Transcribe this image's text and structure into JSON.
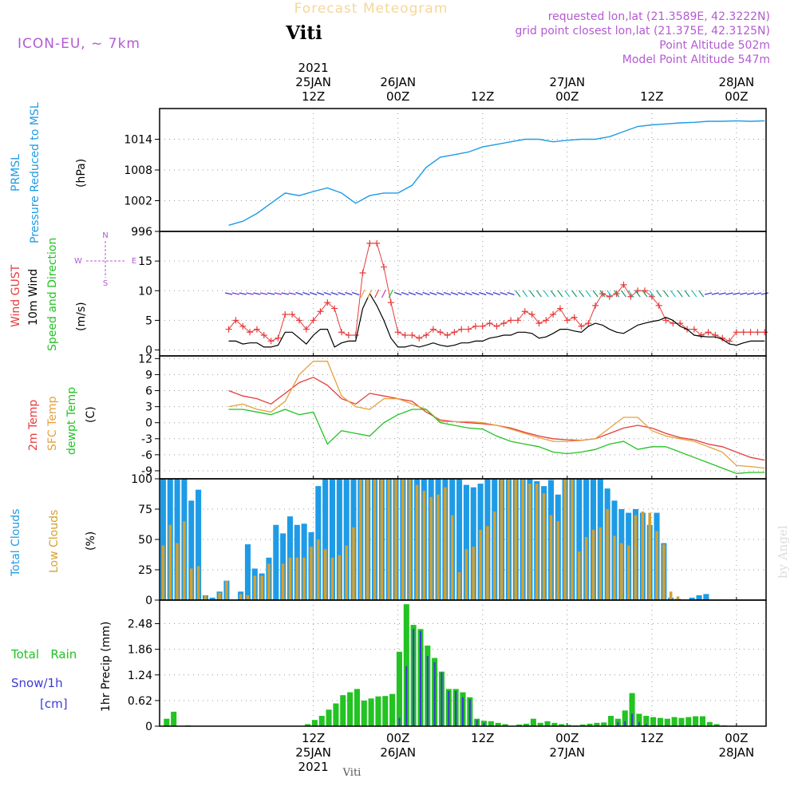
{
  "header": {
    "product": "Forecast Meteogram",
    "location": "Viti",
    "model": "ICON-EU, ~ 7km",
    "requested": "requested lon,lat (21.3589E, 42.3222N)",
    "gridpoint": "grid point closest lon,lat (21.375E, 42.3125N)",
    "point_alt": "Point Altitude 502m",
    "model_alt": "Model Point Altitude 547m",
    "credit": "by Angel",
    "footer": "Viti"
  },
  "time_axis": {
    "top_labels": [
      {
        "h": 12,
        "lines": [
          "2021",
          "25JAN",
          "12Z"
        ]
      },
      {
        "h": 24,
        "lines": [
          "26JAN",
          "00Z"
        ]
      },
      {
        "h": 36,
        "lines": [
          "12Z"
        ]
      },
      {
        "h": 48,
        "lines": [
          "27JAN",
          "00Z"
        ]
      },
      {
        "h": 60,
        "lines": [
          "12Z"
        ]
      },
      {
        "h": 72,
        "lines": [
          "28JAN",
          "00Z"
        ]
      }
    ],
    "bottom_labels": [
      {
        "h": 12,
        "lines": [
          "12Z",
          "25JAN",
          "2021"
        ]
      },
      {
        "h": 24,
        "lines": [
          "00Z",
          "26JAN"
        ]
      },
      {
        "h": 36,
        "lines": [
          "12Z"
        ]
      },
      {
        "h": 48,
        "lines": [
          "00Z",
          "27JAN"
        ]
      },
      {
        "h": 60,
        "lines": [
          "12Z"
        ]
      },
      {
        "h": 72,
        "lines": [
          "00Z",
          "28JAN"
        ]
      }
    ]
  },
  "panel_labels": {
    "pressure": [
      {
        "text": "PRMSL",
        "color": "#1e9be6"
      },
      {
        "text": "Pressure Reduced to MSL",
        "color": "#1e9be6"
      },
      {
        "text": "(hPa)",
        "color": "#000000"
      }
    ],
    "wind": [
      {
        "text": "Wind GUST",
        "color": "#e63c3c"
      },
      {
        "text": "10m Wind",
        "color": "#000000"
      },
      {
        "text": "Speed and Direction",
        "color": "#22c322"
      },
      {
        "text": "(m/s)",
        "color": "#000000"
      }
    ],
    "temp": [
      {
        "text": "2m Temp",
        "color": "#e63c3c"
      },
      {
        "text": "SFC Temp",
        "color": "#e6a03c"
      },
      {
        "text": "dewpt Temp",
        "color": "#22c322"
      },
      {
        "text": "(C)",
        "color": "#000000"
      }
    ],
    "clouds": [
      {
        "text": "Total Clouds",
        "color": "#1e9be6"
      },
      {
        "text": "Low Clouds",
        "color": "#d4a030"
      },
      {
        "text": "(%)",
        "color": "#000000"
      }
    ],
    "precip": [
      {
        "text": "Total   Rain",
        "color": "#22c322"
      },
      {
        "text": "Snow/1h",
        "color": "#3c3cd2"
      },
      {
        "text": "[cm]",
        "color": "#3c3cd2"
      },
      {
        "text": "1hr Precip (mm)",
        "color": "#000000"
      }
    ],
    "compass": {
      "n": "N",
      "s": "S",
      "w": "W",
      "e": "E"
    }
  },
  "chart_data": [
    {
      "type": "line",
      "title": "PRMSL Pressure Reduced to MSL",
      "ylabel": "(hPa)",
      "ylim": [
        996,
        1020
      ],
      "yticks": [
        996,
        1002,
        1008,
        1014
      ],
      "x_hours": [
        0,
        2,
        4,
        6,
        8,
        10,
        12,
        14,
        16,
        18,
        20,
        22,
        24,
        26,
        28,
        30,
        32,
        34,
        36,
        38,
        40,
        42,
        44,
        46,
        48,
        50,
        52,
        54,
        56,
        58,
        60,
        62,
        64,
        66,
        68,
        70,
        72,
        74,
        76
      ],
      "series": [
        {
          "name": "PRMSL",
          "color": "#1e9be6",
          "values": [
            997.2,
            998.0,
            999.5,
            1001.5,
            1003.5,
            1003.0,
            1003.8,
            1004.5,
            1003.5,
            1001.5,
            1003.0,
            1003.5,
            1003.5,
            1005.0,
            1008.5,
            1010.5,
            1011.0,
            1011.5,
            1012.5,
            1013.0,
            1013.5,
            1014.0,
            1014.0,
            1013.5,
            1013.8,
            1014.0,
            1014.0,
            1014.5,
            1015.5,
            1016.5,
            1016.8,
            1017.0,
            1017.2,
            1017.3,
            1017.5,
            1017.5,
            1017.6,
            1017.5,
            1017.6
          ]
        }
      ]
    },
    {
      "type": "line",
      "title": "Wind GUST / 10m Wind",
      "ylabel": "(m/s)",
      "ylim": [
        -1,
        20
      ],
      "yticks": [
        0,
        5,
        10,
        15
      ],
      "x_hours": [
        0,
        1,
        2,
        3,
        4,
        5,
        6,
        7,
        8,
        9,
        10,
        11,
        12,
        13,
        14,
        15,
        16,
        17,
        18,
        19,
        20,
        21,
        22,
        23,
        24,
        25,
        26,
        27,
        28,
        29,
        30,
        31,
        32,
        33,
        34,
        35,
        36,
        37,
        38,
        39,
        40,
        41,
        42,
        43,
        44,
        45,
        46,
        47,
        48,
        49,
        50,
        51,
        52,
        53,
        54,
        55,
        56,
        57,
        58,
        59,
        60,
        61,
        62,
        63,
        64,
        65,
        66,
        67,
        68,
        69,
        70,
        71,
        72,
        73,
        74,
        75,
        76
      ],
      "series": [
        {
          "name": "Wind GUST",
          "color": "#e63c3c",
          "values": [
            3.5,
            5,
            4,
            3,
            3.5,
            2.5,
            1.5,
            2,
            6,
            6,
            5,
            3.5,
            5,
            6.5,
            8,
            7,
            3,
            2.5,
            2.5,
            13,
            18,
            18,
            14,
            8,
            3,
            2.5,
            2.5,
            2,
            2.5,
            3.5,
            3,
            2.5,
            3,
            3.5,
            3.5,
            4,
            4,
            4.5,
            4,
            4.5,
            5,
            5,
            6.5,
            6,
            4.5,
            5,
            6,
            7,
            5,
            5.5,
            4,
            4.5,
            7.5,
            9.5,
            9,
            9.5,
            11,
            9,
            10,
            10,
            9,
            7.5,
            5,
            4.5,
            4.5,
            3.5,
            3.5,
            2.5,
            3,
            2.5,
            2,
            1.5,
            3,
            3,
            3,
            3,
            3
          ]
        },
        {
          "name": "10m Wind",
          "color": "#000000",
          "values": [
            1.5,
            1.5,
            1,
            1.2,
            1.2,
            0.5,
            0.5,
            0.8,
            3,
            3,
            2,
            1,
            2.5,
            3.5,
            3.5,
            0.5,
            1.2,
            1.5,
            1.5,
            7,
            9.5,
            7.5,
            5,
            2,
            0.5,
            0.5,
            0.8,
            0.5,
            0.8,
            1.2,
            0.8,
            0.6,
            0.8,
            1.2,
            1.2,
            1.5,
            1.5,
            2,
            2.2,
            2.5,
            2.5,
            3,
            3,
            2.8,
            2,
            2.2,
            2.8,
            3.5,
            3.5,
            3.2,
            3,
            4,
            4.5,
            4.2,
            3.5,
            3,
            2.8,
            3.5,
            4.2,
            4.5,
            4.8,
            5,
            5.5,
            5,
            4,
            3.5,
            2.5,
            2.3,
            2.2,
            2.2,
            1.8,
            1,
            0.8,
            1.2,
            1.5,
            1.5,
            1.5
          ]
        }
      ]
    },
    {
      "type": "line",
      "title": "2m Temp / SFC Temp / dewpt Temp",
      "ylabel": "(C)",
      "ylim": [
        -10.5,
        12.5
      ],
      "yticks": [
        -9,
        -6,
        -3,
        0,
        3,
        6,
        9,
        12
      ],
      "x_hours": [
        0,
        2,
        4,
        6,
        8,
        10,
        12,
        14,
        16,
        18,
        20,
        22,
        24,
        26,
        28,
        30,
        32,
        34,
        36,
        38,
        40,
        42,
        44,
        46,
        48,
        50,
        52,
        54,
        56,
        58,
        60,
        62,
        64,
        66,
        68,
        70,
        72,
        74,
        76
      ],
      "series": [
        {
          "name": "2m Temp",
          "color": "#e63c3c",
          "values": [
            6,
            5,
            4.5,
            3.5,
            5.5,
            7.5,
            8.5,
            7,
            4.5,
            3.5,
            5.5,
            5,
            4.5,
            4,
            2,
            0.5,
            0.2,
            0,
            -0.2,
            -0.5,
            -1,
            -1.8,
            -2.5,
            -3,
            -3.2,
            -3.3,
            -3,
            -2,
            -1,
            -0.5,
            -1,
            -2,
            -2.8,
            -3.2,
            -4,
            -4.5,
            -5.5,
            -6.5,
            -7
          ]
        },
        {
          "name": "SFC Temp",
          "color": "#e6a03c",
          "values": [
            3,
            3.5,
            2.5,
            2,
            4,
            9,
            11.5,
            11.5,
            5,
            3,
            2.5,
            4.5,
            4.5,
            3.5,
            2.5,
            0.2,
            0.2,
            0.2,
            0,
            -0.5,
            -1.2,
            -2,
            -2.8,
            -3.5,
            -3.5,
            -3.3,
            -3,
            -1,
            1,
            1,
            -1.5,
            -2.5,
            -3,
            -3.5,
            -4.5,
            -5.5,
            -8,
            -8.2,
            -8.5
          ]
        },
        {
          "name": "dewpt Temp",
          "color": "#22c322",
          "values": [
            2.5,
            2.5,
            2,
            1.5,
            2.5,
            1.5,
            2,
            -4,
            -1.5,
            -2,
            -2.5,
            0,
            1.5,
            2.5,
            2.5,
            0,
            -0.5,
            -1,
            -1.2,
            -2.5,
            -3.5,
            -4,
            -4.5,
            -5.5,
            -5.8,
            -5.5,
            -5,
            -4,
            -3.5,
            -5,
            -4.5,
            -4.5,
            -5.5,
            -6.5,
            -7.5,
            -8.5,
            -9.5,
            -9.3,
            -9.3
          ]
        }
      ]
    },
    {
      "type": "bar",
      "title": "Total Clouds / Low Clouds",
      "ylabel": "(%)",
      "ylim": [
        0,
        100
      ],
      "yticks": [
        0,
        25,
        50,
        75,
        100
      ],
      "series": [
        {
          "name": "Total Clouds",
          "color": "#1e9be6",
          "values": [
            100,
            100,
            100,
            100,
            82,
            91,
            4,
            2,
            7,
            16,
            0,
            7,
            46,
            26,
            22,
            35,
            62,
            55,
            69,
            62,
            63,
            56,
            94,
            100,
            100,
            100,
            100,
            100,
            100,
            100,
            100,
            100,
            100,
            100,
            100,
            100,
            100,
            100,
            100,
            100,
            100,
            100,
            100,
            95,
            93,
            96,
            100,
            100,
            100,
            100,
            100,
            100,
            100,
            98,
            94,
            99,
            87,
            100,
            100,
            100,
            100,
            100,
            100,
            92,
            82,
            75,
            72,
            75,
            72,
            62,
            72,
            47,
            2,
            1,
            0,
            2,
            4,
            5
          ]
        },
        {
          "name": "Low Clouds",
          "color": "#d4a030",
          "values": [
            45,
            62,
            47,
            65,
            26,
            28,
            4,
            0,
            6,
            16,
            0,
            5,
            4,
            20,
            20,
            30,
            0,
            30,
            35,
            35,
            35,
            44,
            50,
            42,
            35,
            37,
            45,
            60,
            100,
            100,
            100,
            100,
            100,
            100,
            100,
            100,
            95,
            90,
            85,
            87,
            93,
            70,
            23,
            42,
            44,
            58,
            61,
            73,
            100,
            100,
            100,
            100,
            96,
            96,
            88,
            70,
            65,
            100,
            100,
            40,
            52,
            58,
            60,
            75,
            53,
            47,
            45,
            70,
            73,
            72,
            57,
            46,
            7,
            3,
            0,
            0,
            0,
            0
          ]
        }
      ]
    },
    {
      "type": "bar",
      "title": "1hr Precip (mm)",
      "ylabel": "1hr Precip (mm)",
      "ylim": [
        0,
        3.05
      ],
      "yticks": [
        0,
        0.62,
        1.24,
        1.86,
        2.48
      ],
      "series": [
        {
          "name": "Total Rain",
          "color": "#22c322",
          "values": [
            0.18,
            0.35,
            0,
            0.02,
            0,
            0,
            0,
            0,
            0,
            0,
            0,
            0,
            0,
            0,
            0,
            0,
            0,
            0,
            0,
            0,
            0.05,
            0.15,
            0.25,
            0.4,
            0.55,
            0.75,
            0.82,
            0.9,
            0.62,
            0.67,
            0.72,
            0.73,
            0.78,
            1.8,
            2.95,
            2.45,
            2.35,
            1.95,
            1.65,
            1.32,
            0.9,
            0.9,
            0.82,
            0.7,
            0.18,
            0.13,
            0.12,
            0.08,
            0.05,
            0,
            0.04,
            0.06,
            0.18,
            0.08,
            0.12,
            0.08,
            0.05,
            0.03,
            0.02,
            0.04,
            0.06,
            0.08,
            0.09,
            0.25,
            0.18,
            0.38,
            0.8,
            0.3,
            0.25,
            0.22,
            0.2,
            0.18,
            0.22,
            0.2,
            0.22,
            0.24,
            0.24,
            0.1,
            0.05,
            0.02
          ]
        },
        {
          "name": "Snow/1h",
          "color": "#3c3cd2",
          "values": [
            0,
            0,
            0,
            0,
            0,
            0,
            0,
            0,
            0,
            0,
            0,
            0,
            0,
            0,
            0,
            0,
            0,
            0,
            0,
            0,
            0,
            0,
            0,
            0,
            0,
            0,
            0,
            0,
            0,
            0,
            0,
            0,
            0,
            0.2,
            1.45,
            2.35,
            2.3,
            1.7,
            1.55,
            1.3,
            0.85,
            0.85,
            0.7,
            0.65,
            0.15,
            0.08,
            0.02,
            0,
            0,
            0,
            0,
            0,
            0,
            0,
            0,
            0,
            0,
            0,
            0,
            0,
            0,
            0,
            0,
            0,
            0.1,
            0.12,
            0.3,
            0.1,
            0.05,
            0.02,
            0,
            0,
            0,
            0,
            0,
            0,
            0,
            0,
            0,
            0
          ]
        }
      ]
    }
  ]
}
